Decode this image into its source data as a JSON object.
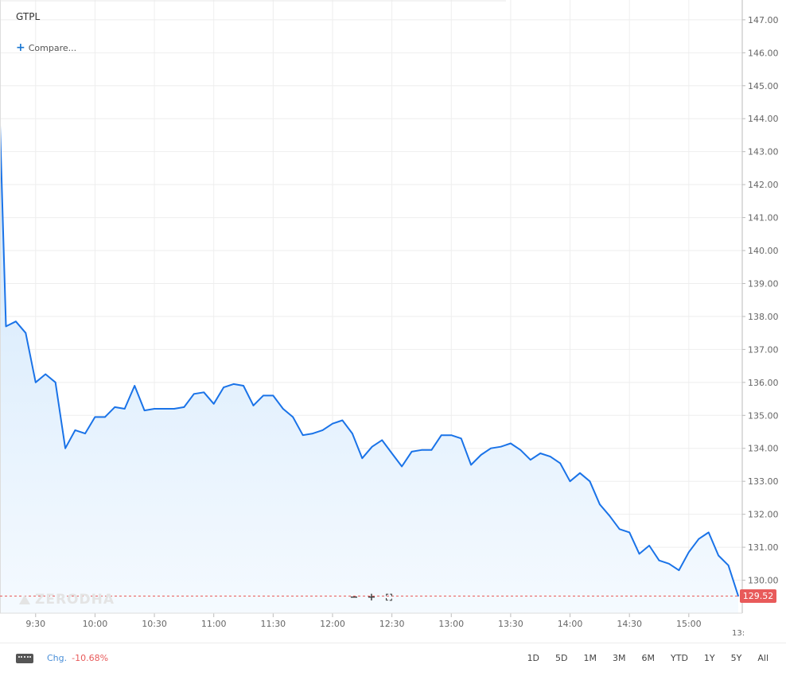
{
  "header": {
    "symbol": "GTPL",
    "compare_label": "Compare..."
  },
  "watermark": "ZERODHA",
  "current_price": "129.52",
  "cut_tick_label": "13:",
  "footer": {
    "change_label": "Chg.",
    "change_value": "-10.68%",
    "ranges": [
      "1D",
      "5D",
      "1M",
      "3M",
      "6M",
      "YTD",
      "1Y",
      "5Y",
      "All"
    ]
  },
  "colors": {
    "line": "#1a73e8",
    "fill_top": "#cfe6fb",
    "fill_bottom": "#f5faff",
    "price_badge": "#e85a5a",
    "change_negative": "#e85a5a"
  },
  "chart_data": {
    "type": "area",
    "title": "",
    "xlabel": "",
    "ylabel": "",
    "ylim": [
      129.0,
      147.6
    ],
    "y_ticks": [
      "130.00",
      "131.00",
      "132.00",
      "133.00",
      "134.00",
      "135.00",
      "136.00",
      "137.00",
      "138.00",
      "139.00",
      "140.00",
      "141.00",
      "142.00",
      "143.00",
      "144.00",
      "145.00",
      "146.00",
      "147.00"
    ],
    "x_ticks": [
      "9:30",
      "10:00",
      "10:30",
      "11:00",
      "11:30",
      "12:00",
      "12:30",
      "13:00",
      "13:30",
      "14:00",
      "14:30",
      "15:00"
    ],
    "x_tick_minutes": [
      570,
      600,
      630,
      660,
      690,
      720,
      750,
      780,
      810,
      840,
      870,
      900
    ],
    "xlim_minutes": [
      552,
      927
    ],
    "series": [
      {
        "x_minutes": [
          552,
          555,
          560,
          565,
          570,
          575,
          580,
          585,
          590,
          595,
          600,
          605,
          610,
          615,
          620,
          625,
          630,
          635,
          640,
          645,
          650,
          655,
          660,
          665,
          670,
          675,
          680,
          685,
          690,
          695,
          700,
          705,
          710,
          715,
          720,
          725,
          730,
          735,
          740,
          745,
          750,
          755,
          760,
          765,
          770,
          775,
          780,
          785,
          790,
          795,
          800,
          805,
          810,
          815,
          820,
          825,
          830,
          835,
          840,
          845,
          850,
          855,
          860,
          865,
          870,
          875,
          880,
          885,
          890,
          895,
          900,
          905,
          910,
          915,
          920,
          925
        ],
        "values": [
          143.8,
          137.7,
          137.85,
          137.5,
          136.0,
          136.25,
          136.0,
          134.0,
          134.55,
          134.45,
          134.95,
          134.95,
          135.25,
          135.2,
          135.9,
          135.15,
          135.2,
          135.2,
          135.2,
          135.25,
          135.65,
          135.7,
          135.35,
          135.85,
          135.95,
          135.9,
          135.3,
          135.6,
          135.6,
          135.2,
          134.95,
          134.4,
          134.45,
          134.55,
          134.75,
          134.85,
          134.45,
          133.7,
          134.05,
          134.25,
          133.85,
          133.45,
          133.9,
          133.95,
          133.95,
          134.4,
          134.4,
          134.3,
          133.5,
          133.8,
          134.0,
          134.05,
          134.15,
          133.95,
          133.65,
          133.85,
          133.75,
          133.55,
          133.0,
          133.25,
          133.0,
          132.3,
          131.95,
          131.55,
          131.45,
          130.8,
          131.05,
          130.6,
          130.5,
          130.3,
          130.85,
          131.25,
          131.45,
          130.75,
          130.45,
          129.52
        ]
      }
    ]
  }
}
